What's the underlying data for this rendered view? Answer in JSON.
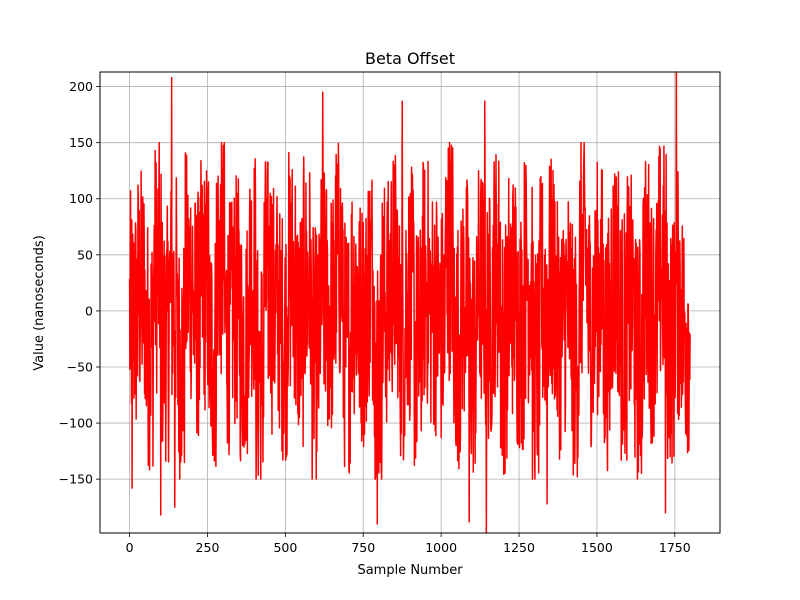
{
  "chart_data": {
    "type": "line",
    "title": "Beta Offset",
    "xlabel": "Sample Number",
    "ylabel": "Value (nanoseconds)",
    "xlim": [
      -95,
      1895
    ],
    "ylim": [
      -198,
      213
    ],
    "xticks": [
      0,
      250,
      500,
      750,
      1000,
      1250,
      1500,
      1750
    ],
    "xtick_labels": [
      "0",
      "250",
      "500",
      "750",
      "1000",
      "1250",
      "1500",
      "1750"
    ],
    "yticks": [
      -150,
      -100,
      -50,
      0,
      50,
      100,
      150,
      200
    ],
    "ytick_labels": [
      "−150",
      "−100",
      "−50",
      "0",
      "50",
      "100",
      "150",
      "200"
    ],
    "grid": true,
    "series": [
      {
        "color": "#ff0000",
        "sample_count": 1800,
        "x_start": 0,
        "x_end": 1799,
        "values_every_25_samples": [
          -20,
          45,
          -80,
          110,
          -60,
          30,
          -120,
          85,
          -10,
          60,
          -95,
          140,
          -40,
          20,
          -70,
          100,
          -150,
          75,
          10,
          -55,
          90,
          -30,
          65,
          -110,
          35,
          -5,
          120,
          -85,
          50,
          -25,
          80,
          -130,
          15,
          95,
          -65,
          40,
          -100,
          70,
          5,
          -45,
          150,
          -75,
          25,
          -115,
          55,
          -15,
          105,
          -90,
          45,
          -35,
          85,
          -140,
          30,
          65,
          -50,
          10,
          -105,
          125,
          -20,
          60,
          -80,
          95,
          -60,
          20,
          -125,
          75,
          -10,
          110,
          -70,
          35,
          -40,
          70
        ],
        "spikes": [
          {
            "x": 8,
            "y": -158
          },
          {
            "x": 100,
            "y": -182
          },
          {
            "x": 135,
            "y": 208
          },
          {
            "x": 145,
            "y": -175
          },
          {
            "x": 620,
            "y": 195
          },
          {
            "x": 795,
            "y": -190
          },
          {
            "x": 875,
            "y": 187
          },
          {
            "x": 1090,
            "y": -188
          },
          {
            "x": 1140,
            "y": 187
          },
          {
            "x": 1145,
            "y": -198
          },
          {
            "x": 1755,
            "y": 213
          },
          {
            "x": 1720,
            "y": -180
          },
          {
            "x": 1340,
            "y": -172
          }
        ]
      }
    ]
  }
}
